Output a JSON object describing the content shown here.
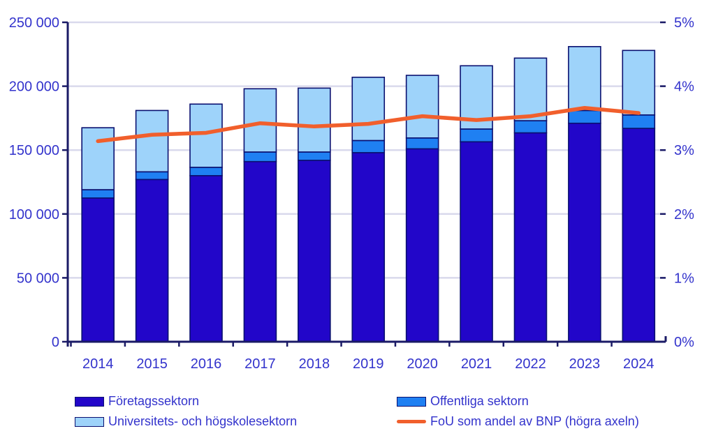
{
  "axis_text_color": "#3333CC",
  "colors": {
    "foretagssektorn": "#2206C9",
    "offentliga_sektorn": "#1F80F2",
    "universitets_sektorn": "#9ED3FA",
    "fou_line": "#F15F2C",
    "bar_border": "#0A1070",
    "axis_line": "#1A1A66",
    "gridline": "#D9D9EC"
  },
  "chart_data": {
    "type": "bar",
    "subtype": "stacked-bars-with-line-overlay",
    "categories": [
      "2014",
      "2015",
      "2016",
      "2017",
      "2018",
      "2019",
      "2020",
      "2021",
      "2022",
      "2023",
      "2024"
    ],
    "series": [
      {
        "name": "Företagssektorn",
        "type": "bar",
        "axis": "left",
        "color": "#2206C9",
        "values": [
          112500,
          127000,
          130000,
          141000,
          142000,
          148000,
          151000,
          156500,
          163500,
          171000,
          167000
        ]
      },
      {
        "name": "Offentliga sektorn",
        "type": "bar",
        "axis": "left",
        "color": "#1F80F2",
        "values": [
          6500,
          6000,
          6500,
          7500,
          6500,
          9500,
          8500,
          10000,
          9500,
          10000,
          10500
        ]
      },
      {
        "name": "Universitets- och högskolesektorn",
        "type": "bar",
        "axis": "left",
        "color": "#9ED3FA",
        "values": [
          48500,
          48000,
          49500,
          49500,
          50000,
          49500,
          49000,
          49500,
          49000,
          50000,
          50500
        ]
      },
      {
        "name": "FoU som andel av BNP (högra axeln)",
        "type": "line",
        "axis": "right",
        "color": "#F15F2C",
        "values": [
          3.14,
          3.24,
          3.27,
          3.42,
          3.37,
          3.41,
          3.53,
          3.47,
          3.53,
          3.66,
          3.58
        ]
      }
    ],
    "stacked_totals": [
      167500,
      181000,
      186000,
      198000,
      198500,
      207000,
      208500,
      216000,
      222000,
      231000,
      228000
    ],
    "left_axis": {
      "min": 0,
      "max": 250000,
      "tick_labels": [
        "0",
        "50 000",
        "100 000",
        "150 000",
        "200 000",
        "250 000"
      ]
    },
    "right_axis": {
      "min": 0,
      "max": 5,
      "tick_labels": [
        "0%",
        "1%",
        "2%",
        "3%",
        "4%",
        "5%"
      ]
    },
    "title": "",
    "xlabel": "",
    "ylabel": "",
    "grid": true,
    "legend_position": "bottom"
  }
}
